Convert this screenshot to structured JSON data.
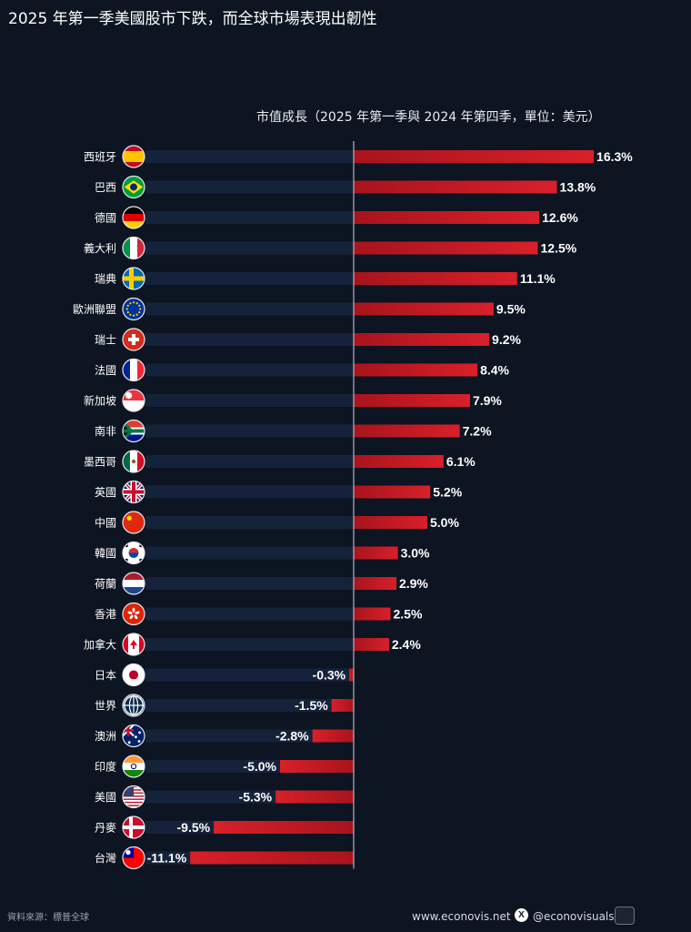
{
  "header": {
    "title": "2025 年第一季美國股市下跌，而全球市場表現出韌性",
    "subtitle": "市值成長（2025 年第一季與 2024 年第四季，單位：美元）"
  },
  "colors": {
    "background": "#0d1422",
    "bar": "#d8202a",
    "track": "#14233a",
    "axis": "#cfd5df"
  },
  "chart_data": {
    "type": "bar",
    "orientation": "horizontal",
    "title": "",
    "subtitle": "市值成長（2025 年第一季與 2024 年第四季，單位：美元）",
    "xlabel": "",
    "ylabel": "",
    "unit": "%",
    "xlim": [
      -11.1,
      16.3
    ],
    "grid": false,
    "categories": [
      "西班牙",
      "巴西",
      "德國",
      "義大利",
      "瑞典",
      "歐洲聯盟",
      "瑞士",
      "法國",
      "新加坡",
      "南非",
      "墨西哥",
      "英國",
      "中國",
      "韓國",
      "荷蘭",
      "香港",
      "加拿大",
      "日本",
      "世界",
      "澳洲",
      "印度",
      "美國",
      "丹麥",
      "台灣"
    ],
    "values": [
      16.3,
      13.8,
      12.6,
      12.5,
      11.1,
      9.5,
      9.2,
      8.4,
      7.9,
      7.2,
      6.1,
      5.2,
      5.0,
      3.0,
      2.9,
      2.5,
      2.4,
      -0.3,
      -1.5,
      -2.8,
      -5.0,
      -5.3,
      -9.5,
      -11.1
    ],
    "labels": [
      "16.3%",
      "13.8%",
      "12.6%",
      "12.5%",
      "11.1%",
      "9.5%",
      "9.2%",
      "8.4%",
      "7.9%",
      "7.2%",
      "6.1%",
      "5.2%",
      "5.0%",
      "3.0%",
      "2.9%",
      "2.5%",
      "2.4%",
      "-0.3%",
      "-1.5%",
      "-2.8%",
      "-5.0%",
      "-5.3%",
      "-9.5%",
      "-11.1%"
    ],
    "flag_icons": [
      "spain-flag-icon",
      "brazil-flag-icon",
      "germany-flag-icon",
      "italy-flag-icon",
      "sweden-flag-icon",
      "eu-flag-icon",
      "switzerland-flag-icon",
      "france-flag-icon",
      "singapore-flag-icon",
      "south-africa-flag-icon",
      "mexico-flag-icon",
      "uk-flag-icon",
      "china-flag-icon",
      "korea-flag-icon",
      "netherlands-flag-icon",
      "hong-kong-flag-icon",
      "canada-flag-icon",
      "japan-flag-icon",
      "world-globe-icon",
      "australia-flag-icon",
      "india-flag-icon",
      "usa-flag-icon",
      "denmark-flag-icon",
      "taiwan-flag-icon"
    ]
  },
  "footer": {
    "source": "資料來源：標普全球",
    "website": "www.econovis.net",
    "social_icon": "x-icon",
    "social": "@econovisuals"
  }
}
